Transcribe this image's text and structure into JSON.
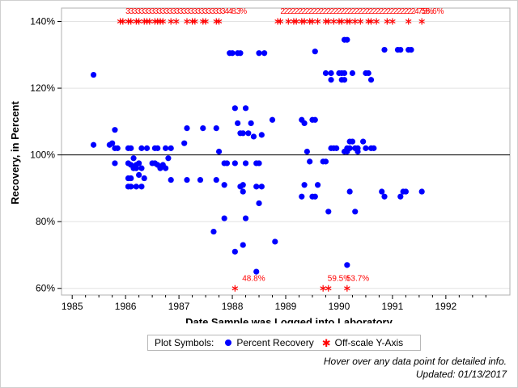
{
  "chart_data": {
    "type": "scatter",
    "title": "",
    "xlabel": "Date Sample was Logged into Laboratory",
    "ylabel": "Recovery, in Percent",
    "x_ticks": [
      "1985",
      "1986",
      "1987",
      "1988",
      "1989",
      "1990",
      "1991",
      "1992"
    ],
    "xlim": [
      1984.8,
      1993.2
    ],
    "y_ticks": [
      "60%",
      "80%",
      "100%",
      "120%",
      "140%"
    ],
    "ylim": [
      58,
      144
    ],
    "reference_line_y": 100,
    "grid": "horizontal",
    "series": [
      {
        "name": "Percent Recovery",
        "color": "#0000ff",
        "marker": "dot",
        "points": [
          [
            1985.4,
            124
          ],
          [
            1985.4,
            103
          ],
          [
            1985.7,
            103
          ],
          [
            1985.75,
            103.5
          ],
          [
            1985.8,
            107.5
          ],
          [
            1985.8,
            102
          ],
          [
            1985.85,
            102
          ],
          [
            1985.8,
            97.5
          ],
          [
            1986.05,
            102
          ],
          [
            1986.1,
            102
          ],
          [
            1986.05,
            97.5
          ],
          [
            1986.1,
            97
          ],
          [
            1986.15,
            96
          ],
          [
            1986.2,
            97
          ],
          [
            1986.25,
            97.5
          ],
          [
            1986.3,
            96
          ],
          [
            1986.25,
            94
          ],
          [
            1986.05,
            93
          ],
          [
            1986.1,
            93
          ],
          [
            1986.05,
            90.5
          ],
          [
            1986.1,
            90.5
          ],
          [
            1986.2,
            90.5
          ],
          [
            1986.3,
            90.5
          ],
          [
            1986.35,
            93
          ],
          [
            1986.3,
            102
          ],
          [
            1986.4,
            102
          ],
          [
            1986.5,
            97.5
          ],
          [
            1986.55,
            97.5
          ],
          [
            1986.6,
            97
          ],
          [
            1986.65,
            96
          ],
          [
            1986.55,
            102
          ],
          [
            1986.6,
            102
          ],
          [
            1986.75,
            102
          ],
          [
            1986.85,
            102
          ],
          [
            1986.8,
            99
          ],
          [
            1986.7,
            97
          ],
          [
            1986.75,
            96
          ],
          [
            1986.85,
            92.5
          ],
          [
            1986.2,
            96
          ],
          [
            1986.15,
            99
          ],
          [
            1987.15,
            108
          ],
          [
            1987.1,
            103.5
          ],
          [
            1987.15,
            92.5
          ],
          [
            1987.4,
            92.5
          ],
          [
            1987.45,
            108
          ],
          [
            1987.7,
            108
          ],
          [
            1987.7,
            92.5
          ],
          [
            1987.75,
            101
          ],
          [
            1987.85,
            97.5
          ],
          [
            1987.9,
            97.5
          ],
          [
            1987.85,
            91
          ],
          [
            1987.85,
            81
          ],
          [
            1987.65,
            77
          ],
          [
            1987.95,
            130.5
          ],
          [
            1988.0,
            130.5
          ],
          [
            1988.1,
            130.5
          ],
          [
            1988.15,
            130.5
          ],
          [
            1988.05,
            114
          ],
          [
            1988.25,
            114
          ],
          [
            1988.1,
            109.5
          ],
          [
            1988.15,
            106.5
          ],
          [
            1988.2,
            106.5
          ],
          [
            1988.3,
            106.5
          ],
          [
            1988.35,
            109.5
          ],
          [
            1988.4,
            105.5
          ],
          [
            1988.55,
            106
          ],
          [
            1988.25,
            97.5
          ],
          [
            1988.45,
            97.5
          ],
          [
            1988.5,
            97.5
          ],
          [
            1988.15,
            90.5
          ],
          [
            1988.2,
            91
          ],
          [
            1988.2,
            89
          ],
          [
            1988.05,
            97.5
          ],
          [
            1988.55,
            90.5
          ],
          [
            1988.45,
            90.5
          ],
          [
            1988.5,
            85.5
          ],
          [
            1988.25,
            81
          ],
          [
            1988.05,
            71
          ],
          [
            1988.2,
            73
          ],
          [
            1988.45,
            65
          ],
          [
            1988.5,
            130.5
          ],
          [
            1988.6,
            130.5
          ],
          [
            1988.75,
            110.5
          ],
          [
            1988.8,
            74
          ],
          [
            1989.3,
            110.5
          ],
          [
            1989.35,
            109.5
          ],
          [
            1989.5,
            110.5
          ],
          [
            1989.55,
            110.5
          ],
          [
            1989.55,
            131
          ],
          [
            1989.4,
            101
          ],
          [
            1989.45,
            98
          ],
          [
            1989.3,
            87.5
          ],
          [
            1989.35,
            91
          ],
          [
            1989.5,
            87.5
          ],
          [
            1989.55,
            87.5
          ],
          [
            1989.6,
            91
          ],
          [
            1989.7,
            98
          ],
          [
            1989.75,
            98
          ],
          [
            1989.75,
            124.5
          ],
          [
            1989.85,
            124.5
          ],
          [
            1989.85,
            122.5
          ],
          [
            1989.9,
            102
          ],
          [
            1989.85,
            102
          ],
          [
            1989.95,
            102
          ],
          [
            1989.8,
            83
          ],
          [
            1990.0,
            124.5
          ],
          [
            1990.05,
            124.5
          ],
          [
            1990.1,
            124.5
          ],
          [
            1990.05,
            122.5
          ],
          [
            1990.1,
            122.5
          ],
          [
            1990.15,
            134.5
          ],
          [
            1990.1,
            134.5
          ],
          [
            1990.15,
            102
          ],
          [
            1990.2,
            102
          ],
          [
            1990.1,
            101
          ],
          [
            1990.15,
            101
          ],
          [
            1990.2,
            104
          ],
          [
            1990.25,
            104
          ],
          [
            1990.3,
            102
          ],
          [
            1990.35,
            101
          ],
          [
            1990.35,
            102
          ],
          [
            1990.45,
            104
          ],
          [
            1990.5,
            102
          ],
          [
            1990.25,
            124.5
          ],
          [
            1990.5,
            124.5
          ],
          [
            1990.55,
            124.5
          ],
          [
            1990.6,
            122.5
          ],
          [
            1990.6,
            102
          ],
          [
            1990.65,
            102
          ],
          [
            1990.2,
            89
          ],
          [
            1990.3,
            83
          ],
          [
            1990.15,
            67
          ],
          [
            1990.8,
            89
          ],
          [
            1990.85,
            87.5
          ],
          [
            1990.85,
            131.5
          ],
          [
            1991.1,
            131.5
          ],
          [
            1991.15,
            131.5
          ],
          [
            1991.3,
            131.5
          ],
          [
            1991.35,
            131.5
          ],
          [
            1991.2,
            89
          ],
          [
            1991.25,
            89
          ],
          [
            1991.15,
            87.5
          ],
          [
            1991.55,
            89
          ]
        ]
      },
      {
        "name": "Off-scale Y-Axis",
        "color": "#ff0000",
        "marker": "star",
        "points": [
          [
            1985.9,
            140
          ],
          [
            1985.95,
            140
          ],
          [
            1986.05,
            140
          ],
          [
            1986.1,
            140
          ],
          [
            1986.2,
            140
          ],
          [
            1986.25,
            140
          ],
          [
            1986.35,
            140
          ],
          [
            1986.4,
            140
          ],
          [
            1986.45,
            140
          ],
          [
            1986.55,
            140
          ],
          [
            1986.6,
            140
          ],
          [
            1986.65,
            140
          ],
          [
            1986.7,
            140
          ],
          [
            1986.85,
            140
          ],
          [
            1986.95,
            140
          ],
          [
            1987.15,
            140
          ],
          [
            1987.25,
            140
          ],
          [
            1987.3,
            140
          ],
          [
            1987.45,
            140
          ],
          [
            1987.5,
            140
          ],
          [
            1987.7,
            140
          ],
          [
            1987.75,
            140
          ],
          [
            1988.85,
            140
          ],
          [
            1988.9,
            140
          ],
          [
            1989.05,
            140
          ],
          [
            1989.15,
            140
          ],
          [
            1989.2,
            140
          ],
          [
            1989.3,
            140
          ],
          [
            1989.35,
            140
          ],
          [
            1989.45,
            140
          ],
          [
            1989.5,
            140
          ],
          [
            1989.6,
            140
          ],
          [
            1989.75,
            140
          ],
          [
            1989.8,
            140
          ],
          [
            1989.9,
            140
          ],
          [
            1990.0,
            140
          ],
          [
            1990.05,
            140
          ],
          [
            1990.15,
            140
          ],
          [
            1990.2,
            140
          ],
          [
            1990.3,
            140
          ],
          [
            1990.4,
            140
          ],
          [
            1990.55,
            140
          ],
          [
            1990.6,
            140
          ],
          [
            1990.7,
            140
          ],
          [
            1990.9,
            140
          ],
          [
            1991.0,
            140
          ],
          [
            1991.3,
            140
          ],
          [
            1991.55,
            140
          ],
          [
            1988.05,
            60
          ],
          [
            1989.7,
            60
          ],
          [
            1989.8,
            60
          ],
          [
            1990.15,
            60
          ]
        ]
      }
    ],
    "labels": [
      {
        "text": "48.8%",
        "x": 1988.4,
        "y": 62.3
      },
      {
        "text": "59.5%",
        "x": 1990.0,
        "y": 62.3
      },
      {
        "text": "53.7%",
        "x": 1990.35,
        "y": 62.3
      },
      {
        "text": "58.6%",
        "x": 1991.75,
        "y": 142.3
      }
    ],
    "top_label_runs": [
      {
        "text": "3333333333333333333333333333448.3%",
        "x": 1986.0,
        "y": 142.3
      },
      {
        "text": "2222222222222222222222222222222222222247.5%",
        "x": 1988.9,
        "y": 142.3
      }
    ]
  },
  "legend": {
    "title": "Plot Symbols:",
    "items": [
      "Percent Recovery",
      "Off-scale Y-Axis"
    ],
    "star_glyph": "✱"
  },
  "footnote": {
    "hover": "Hover over any data point for detailed info.",
    "updated": "Updated: 01/13/2017"
  }
}
